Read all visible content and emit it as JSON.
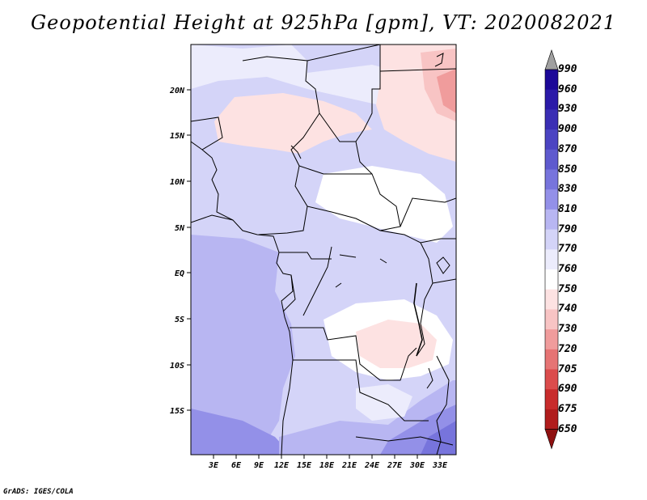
{
  "title": "Geopotential Height at 925hPa [gpm], VT: 2020082021",
  "footer": "GrADS: IGES/COLA",
  "chart_data": {
    "type": "heatmap",
    "title": "Geopotential Height at 925hPa [gpm], VT: 2020082021",
    "variable": "Geopotential Height",
    "level": "925hPa",
    "units": "gpm",
    "valid_time": "2020082021",
    "x_range_deg": [
      0,
      35
    ],
    "y_range_deg": [
      -20,
      24
    ],
    "x_ticks": [
      "3E",
      "6E",
      "9E",
      "12E",
      "15E",
      "18E",
      "21E",
      "24E",
      "27E",
      "30E",
      "33E"
    ],
    "y_ticks": [
      "20N",
      "15N",
      "10N",
      "5N",
      "EQ",
      "5S",
      "10S",
      "15S"
    ],
    "colorbar": {
      "levels": [
        "990",
        "960",
        "930",
        "900",
        "870",
        "850",
        "830",
        "810",
        "790",
        "770",
        "760",
        "750",
        "740",
        "730",
        "720",
        "705",
        "690",
        "675",
        "650"
      ],
      "colors": [
        "#a0a0a0",
        "#1c0898",
        "#2b1aa8",
        "#3a2eb4",
        "#4b44c2",
        "#5e5ace",
        "#7774dc",
        "#9390e8",
        "#b8b6f2",
        "#d4d4f8",
        "#ececfc",
        "#ffffff",
        "#fde2e2",
        "#f8c4c4",
        "#f09c9c",
        "#e67474",
        "#db4c4c",
        "#c82c2c",
        "#b01c1c",
        "#8e1010"
      ]
    }
  }
}
